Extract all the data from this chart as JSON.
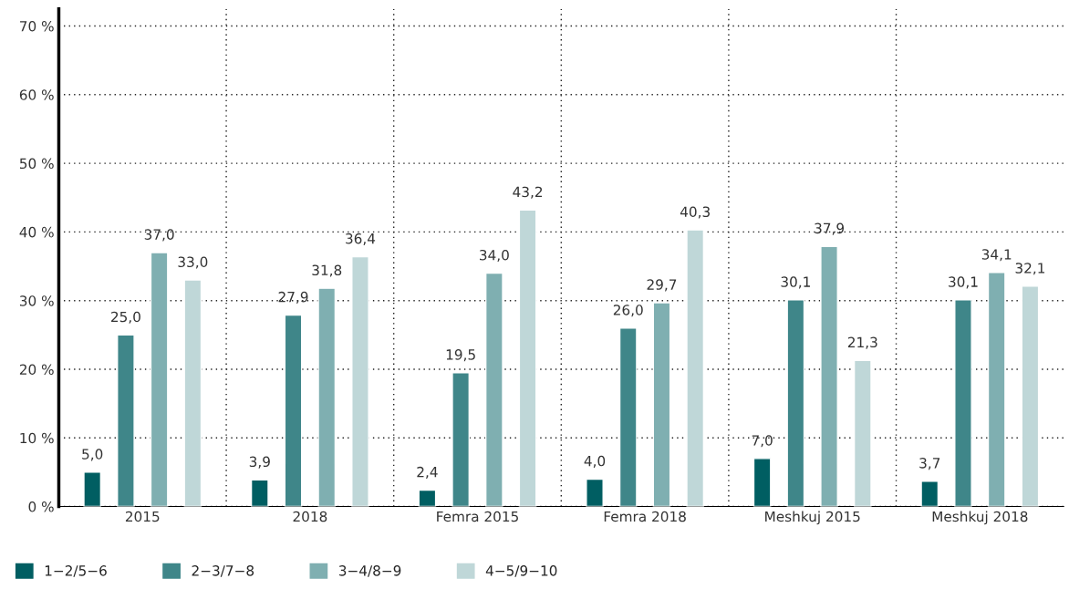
{
  "chart_data": {
    "type": "bar",
    "categories": [
      "2015",
      "2018",
      "Femra 2015",
      "Femra 2018",
      "Meshkuj 2015",
      "Meshkuj 2018"
    ],
    "series": [
      {
        "name": "1−2/5−6",
        "color": "#005e62",
        "values": [
          5.0,
          3.9,
          2.4,
          4.0,
          7.0,
          3.7
        ],
        "value_labels": [
          "5,0",
          "3,9",
          "2,4",
          "4,0",
          "7,0",
          "3,7"
        ]
      },
      {
        "name": "2−3/7−8",
        "color": "#3f8689",
        "values": [
          25.0,
          27.9,
          19.5,
          26.0,
          30.1,
          30.1
        ],
        "value_labels": [
          "25,0",
          "27,9",
          "19,5",
          "26,0",
          "30,1",
          "30,1"
        ]
      },
      {
        "name": "3−4/8−9",
        "color": "#7fafb1",
        "values": [
          37.0,
          31.8,
          34.0,
          29.7,
          37.9,
          34.1
        ],
        "value_labels": [
          "37,0",
          "31,8",
          "34,0",
          "29,7",
          "37,9",
          "34,1"
        ]
      },
      {
        "name": "4−5/9−10",
        "color": "#bfd7d8",
        "values": [
          33.0,
          36.4,
          43.2,
          40.3,
          21.3,
          32.1
        ],
        "value_labels": [
          "33,0",
          "36,4",
          "43,2",
          "40,3",
          "21,3",
          "32,1"
        ]
      }
    ],
    "ylim": [
      0,
      72.5
    ],
    "yticks": [
      {
        "value": 0,
        "label": "0 %"
      },
      {
        "value": 10,
        "label": "10 %"
      },
      {
        "value": 20,
        "label": "20 %"
      },
      {
        "value": 30,
        "label": "30 %"
      },
      {
        "value": 40,
        "label": "40 %"
      },
      {
        "value": 50,
        "label": "50 %"
      },
      {
        "value": 60,
        "label": "60 %"
      },
      {
        "value": 70,
        "label": "70 %"
      }
    ],
    "grid": true,
    "legend": "bottom"
  }
}
